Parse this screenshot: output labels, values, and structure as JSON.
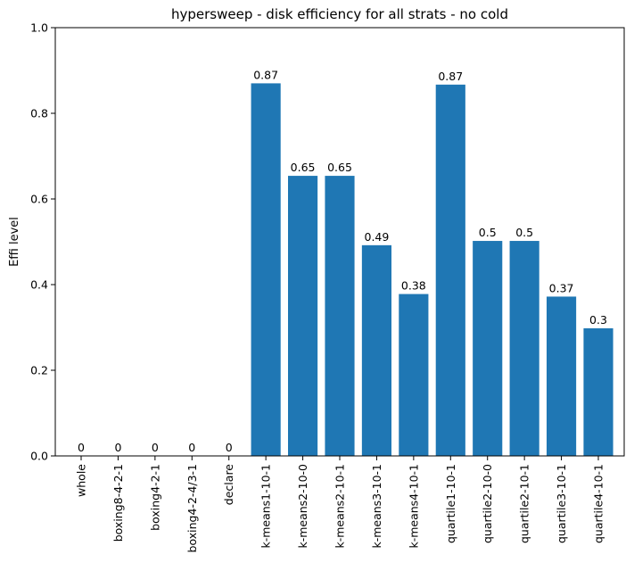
{
  "chart_data": {
    "type": "bar",
    "title": "hypersweep - disk efficiency for all strats - no cold",
    "xlabel": "",
    "ylabel": "Effi level",
    "ylim": [
      0,
      1.0
    ],
    "yticks": [
      "0.0",
      "0.2",
      "0.4",
      "0.6",
      "0.8",
      "1.0"
    ],
    "categories": [
      "whole",
      "boxing8-4-2-1",
      "boxing4-2-1",
      "boxing4-2-4/3-1",
      "declare",
      "k-means1-10-1",
      "k-means2-10-0",
      "k-means2-10-1",
      "k-means3-10-1",
      "k-means4-10-1",
      "quartile1-10-1",
      "quartile2-10-0",
      "quartile2-10-1",
      "quartile3-10-1",
      "quartile4-10-1"
    ],
    "values": [
      0,
      0,
      0,
      0,
      0,
      0.87,
      0.654,
      0.654,
      0.492,
      0.378,
      0.867,
      0.502,
      0.502,
      0.372,
      0.298
    ],
    "data_labels": [
      "0",
      "0",
      "0",
      "0",
      "0",
      "0.87",
      "0.65",
      "0.65",
      "0.49",
      "0.38",
      "0.87",
      "0.5",
      "0.5",
      "0.37",
      "0.3"
    ],
    "bar_color": "#1f77b4",
    "grid": false,
    "legend": false
  }
}
